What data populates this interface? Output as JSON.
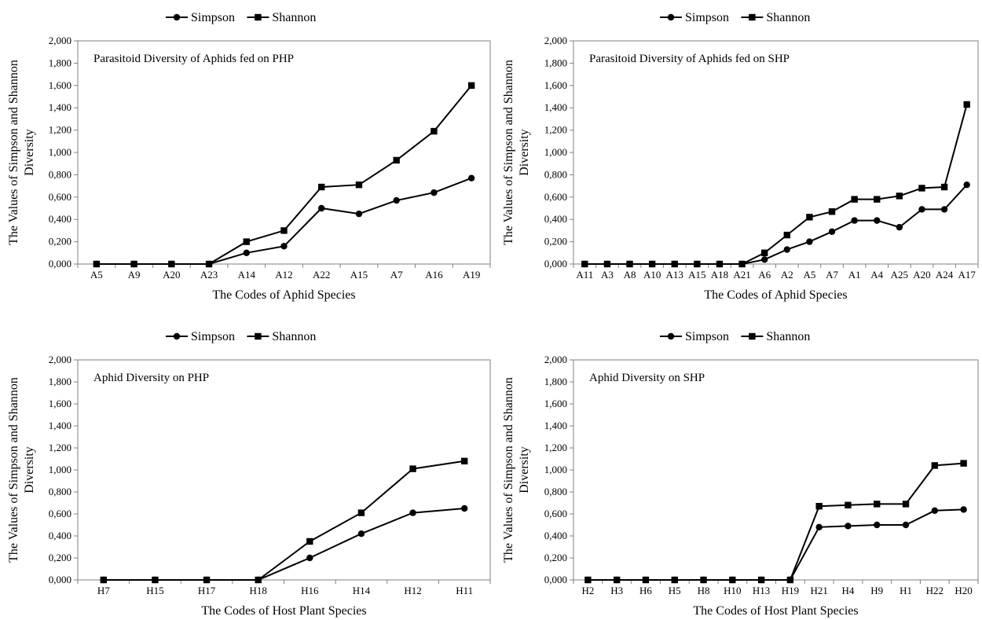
{
  "chart_data": [
    {
      "type": "line",
      "title": "Parasitoid Diversity of Aphids fed on PHP",
      "xlabel": "The Codes of Aphid Species",
      "ylabel_lines": [
        "The Values of Simpson and Shannon",
        "Diversity"
      ],
      "ylim": [
        0,
        2
      ],
      "yticks": [
        "0,000",
        "0,200",
        "0,400",
        "0,600",
        "0,800",
        "1,000",
        "1,200",
        "1,400",
        "1,600",
        "1,800",
        "2,000"
      ],
      "legend": "top-center",
      "grid": false,
      "categories": [
        "A5",
        "A9",
        "A20",
        "A23",
        "A14",
        "A12",
        "A22",
        "A15",
        "A7",
        "A16",
        "A19"
      ],
      "series": [
        {
          "name": "Simpson",
          "marker": "circle",
          "values": [
            0,
            0,
            0,
            0,
            0.1,
            0.16,
            0.5,
            0.45,
            0.57,
            0.64,
            0.77
          ]
        },
        {
          "name": "Shannon",
          "marker": "square",
          "values": [
            0,
            0,
            0,
            0,
            0.2,
            0.3,
            0.69,
            0.71,
            0.93,
            1.19,
            1.6
          ]
        }
      ]
    },
    {
      "type": "line",
      "title": "Parasitoid Diversity of Aphids fed on SHP",
      "xlabel": "The Codes of Aphid Species",
      "ylabel_lines": [
        "The Values of Simpson and Shannon",
        "Diversity"
      ],
      "ylim": [
        0,
        2
      ],
      "yticks": [
        "0,000",
        "0,200",
        "0,400",
        "0,600",
        "0,800",
        "1,000",
        "1,200",
        "1,400",
        "1,600",
        "1,800",
        "2,000"
      ],
      "legend": "top-center",
      "grid": false,
      "categories": [
        "A11",
        "A3",
        "A8",
        "A10",
        "A13",
        "A15",
        "A18",
        "A21",
        "A6",
        "A2",
        "A5",
        "A7",
        "A1",
        "A4",
        "A25",
        "A20",
        "A24",
        "A17"
      ],
      "series": [
        {
          "name": "Simpson",
          "marker": "circle",
          "values": [
            0,
            0,
            0,
            0,
            0,
            0,
            0,
            0,
            0.04,
            0.13,
            0.2,
            0.29,
            0.39,
            0.39,
            0.33,
            0.49,
            0.49,
            0.71
          ]
        },
        {
          "name": "Shannon",
          "marker": "square",
          "values": [
            0,
            0,
            0,
            0,
            0,
            0,
            0,
            0,
            0.1,
            0.26,
            0.42,
            0.47,
            0.58,
            0.58,
            0.61,
            0.68,
            0.69,
            1.43
          ]
        }
      ]
    },
    {
      "type": "line",
      "title": "Aphid Diversity on PHP",
      "xlabel": "The Codes of Host Plant Species",
      "ylabel_lines": [
        "The Values of Simpson and Shannon",
        "Diversity"
      ],
      "ylim": [
        0,
        2
      ],
      "yticks": [
        "0,000",
        "0,200",
        "0,400",
        "0,600",
        "0,800",
        "1,000",
        "1,200",
        "1,400",
        "1,600",
        "1,800",
        "2,000"
      ],
      "legend": "top-center",
      "grid": false,
      "categories": [
        "H7",
        "H15",
        "H17",
        "H18",
        "H16",
        "H14",
        "H12",
        "H11"
      ],
      "series": [
        {
          "name": "Simpson",
          "marker": "circle",
          "values": [
            0,
            0,
            0,
            0,
            0.2,
            0.42,
            0.61,
            0.65
          ]
        },
        {
          "name": "Shannon",
          "marker": "square",
          "values": [
            0,
            0,
            0,
            0,
            0.35,
            0.61,
            1.01,
            1.08
          ]
        }
      ]
    },
    {
      "type": "line",
      "title": "Aphid Diversity on SHP",
      "xlabel": "The Codes of Host Plant Species",
      "ylabel_lines": [
        "The Values of Simpson and Shannon",
        "Diversity"
      ],
      "ylim": [
        0,
        2
      ],
      "yticks": [
        "0,000",
        "0,200",
        "0,400",
        "0,600",
        "0,800",
        "1,000",
        "1,200",
        "1,400",
        "1,600",
        "1,800",
        "2,000"
      ],
      "legend": "top-center",
      "grid": false,
      "categories": [
        "H2",
        "H3",
        "H6",
        "H5",
        "H8",
        "H10",
        "H13",
        "H19",
        "H21",
        "H4",
        "H9",
        "H1",
        "H22",
        "H20"
      ],
      "series": [
        {
          "name": "Simpson",
          "marker": "circle",
          "values": [
            0,
            0,
            0,
            0,
            0,
            0,
            0,
            0,
            0.48,
            0.49,
            0.5,
            0.5,
            0.63,
            0.64
          ]
        },
        {
          "name": "Shannon",
          "marker": "square",
          "values": [
            0,
            0,
            0,
            0,
            0,
            0,
            0,
            0,
            0.67,
            0.68,
            0.69,
            0.69,
            1.04,
            1.06
          ]
        }
      ]
    }
  ]
}
